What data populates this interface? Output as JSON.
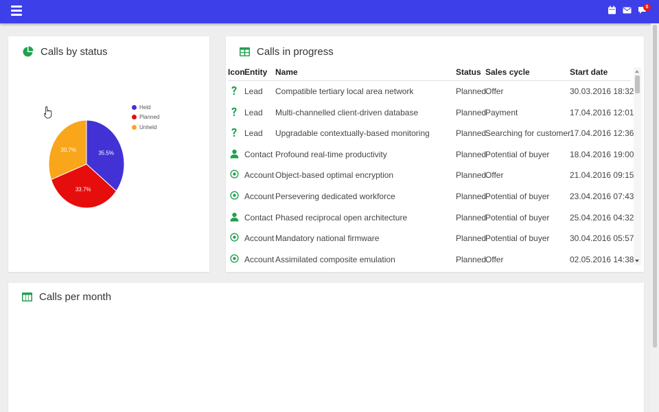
{
  "colors": {
    "topbar": "#3d3fe8",
    "accent_green": "#22a050",
    "held": "#4232d6",
    "planned": "#e60d0d",
    "unheld": "#faa61a"
  },
  "topbar": {
    "notification_count": "0",
    "icons": [
      "menu-icon",
      "calendar-icon",
      "mail-icon",
      "chat-icon"
    ]
  },
  "status_card": {
    "title": "Calls by status",
    "icon": "pie-chart-icon"
  },
  "chart_data": {
    "type": "pie",
    "categories": [
      "Held",
      "Planned",
      "Unheld"
    ],
    "values": [
      35.5,
      33.7,
      30.7
    ],
    "labels": [
      "35.5%",
      "33.7%",
      "30.7%"
    ],
    "colors": [
      "#4232d6",
      "#e60d0d",
      "#faa61a"
    ],
    "legend": "top-right"
  },
  "progress_card": {
    "title": "Calls in progress",
    "icon": "table-icon",
    "columns": [
      "Icon",
      "Entity",
      "Name",
      "Status",
      "Sales cycle",
      "Start date"
    ],
    "rows": [
      {
        "icon": "question-icon",
        "entity": "Lead",
        "name": "Compatible tertiary local area network",
        "status": "Planned",
        "cycle": "Offer",
        "date": "30.03.2016 18:32"
      },
      {
        "icon": "question-icon",
        "entity": "Lead",
        "name": "Multi-channelled client-driven database",
        "status": "Planned",
        "cycle": "Payment",
        "date": "17.04.2016 12:01"
      },
      {
        "icon": "question-icon",
        "entity": "Lead",
        "name": "Upgradable contextually-based monitoring",
        "status": "Planned",
        "cycle": "Searching for customer",
        "date": "17.04.2016 12:36"
      },
      {
        "icon": "person-icon",
        "entity": "Contact",
        "name": "Profound real-time productivity",
        "status": "Planned",
        "cycle": "Potential of buyer",
        "date": "18.04.2016 19:00"
      },
      {
        "icon": "target-icon",
        "entity": "Account",
        "name": "Object-based optimal encryption",
        "status": "Planned",
        "cycle": "Offer",
        "date": "21.04.2016 09:15"
      },
      {
        "icon": "target-icon",
        "entity": "Account",
        "name": "Persevering dedicated workforce",
        "status": "Planned",
        "cycle": "Potential of buyer",
        "date": "23.04.2016 07:43"
      },
      {
        "icon": "person-icon",
        "entity": "Contact",
        "name": "Phased reciprocal open architecture",
        "status": "Planned",
        "cycle": "Potential of buyer",
        "date": "25.04.2016 04:32"
      },
      {
        "icon": "target-icon",
        "entity": "Account",
        "name": "Mandatory national firmware",
        "status": "Planned",
        "cycle": "Potential of buyer",
        "date": "30.04.2016 05:57"
      },
      {
        "icon": "target-icon",
        "entity": "Account",
        "name": "Assimilated composite emulation",
        "status": "Planned",
        "cycle": "Offer",
        "date": "02.05.2016 14:38"
      }
    ]
  },
  "month_card": {
    "title": "Calls per month",
    "icon": "table-icon"
  }
}
